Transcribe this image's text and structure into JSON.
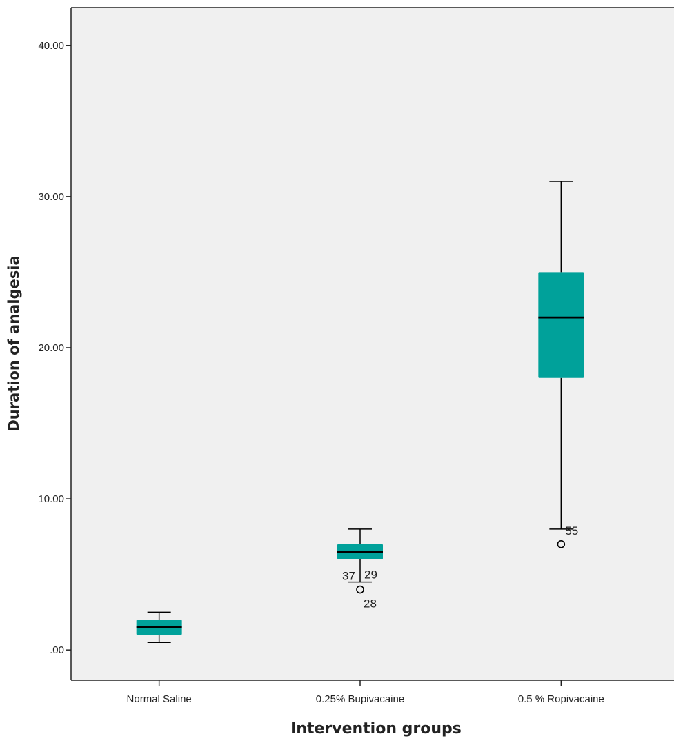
{
  "chart_data": {
    "type": "boxplot",
    "xlabel": "Intervention groups",
    "ylabel": "Duration of analgesia",
    "ylim": [
      -2,
      42.5
    ],
    "yticks": [
      0,
      10,
      20,
      30,
      40
    ],
    "ytick_labels": [
      ".00",
      "10.00",
      "20.00",
      "30.00",
      "40.00"
    ],
    "grid": false,
    "colors": {
      "box_fill": "#00a19a",
      "plot_bg": "#f0f0f0",
      "line": "#000000"
    },
    "categories": [
      "Normal Saline",
      "0.25% Bupivacaine",
      "0.5 % Ropivacaine"
    ],
    "boxes": [
      {
        "category": "Normal Saline",
        "whisker_low": 0.5,
        "q1": 1.0,
        "median": 1.5,
        "q3": 2.0,
        "whisker_high": 2.5,
        "outliers": []
      },
      {
        "category": "0.25% Bupivacaine",
        "whisker_low": 4.5,
        "q1": 6.0,
        "median": 6.5,
        "q3": 7.0,
        "whisker_high": 8.0,
        "outliers": [
          {
            "value": 4.0,
            "labels": [
              "37",
              "29",
              "28"
            ]
          }
        ]
      },
      {
        "category": "0.5 % Ropivacaine",
        "whisker_low": 8.0,
        "q1": 18.0,
        "median": 22.0,
        "q3": 25.0,
        "whisker_high": 31.0,
        "outliers": [
          {
            "value": 7.0,
            "labels": [
              "55"
            ]
          }
        ]
      }
    ]
  }
}
